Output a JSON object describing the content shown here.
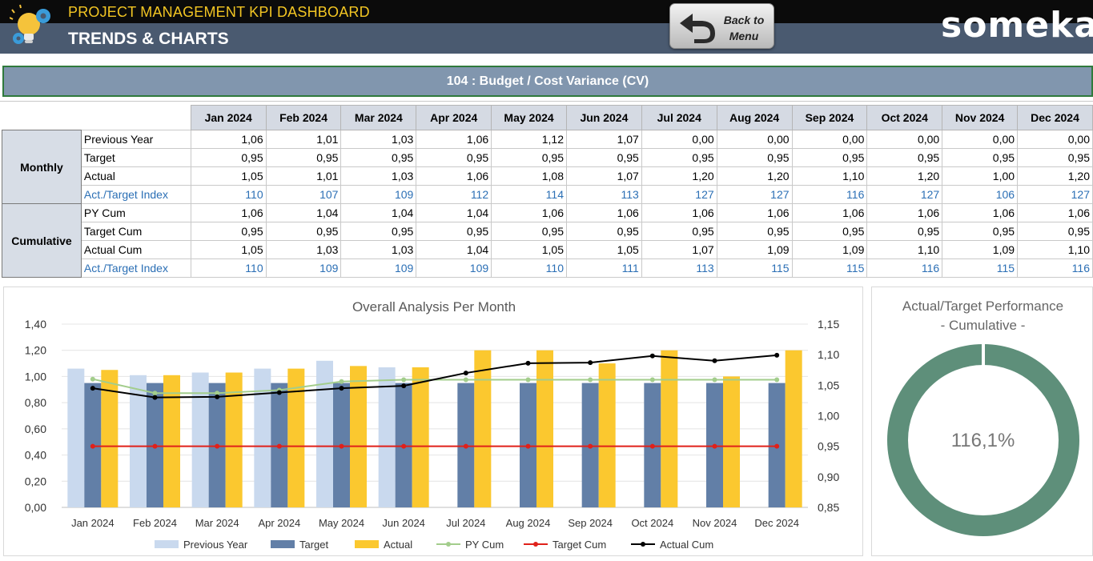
{
  "header": {
    "app_title": "PROJECT MANAGEMENT KPI DASHBOARD",
    "page_title": "TRENDS & CHARTS",
    "back_label": "Back to\nMenu",
    "brand": "someka",
    "icons": [
      "lightbulb-gears-icon",
      "back-arrow-icon"
    ]
  },
  "kpi": {
    "title": "104 : Budget / Cost Variance (CV)"
  },
  "table": {
    "months": [
      "Jan 2024",
      "Feb 2024",
      "Mar 2024",
      "Apr 2024",
      "May 2024",
      "Jun 2024",
      "Jul 2024",
      "Aug 2024",
      "Sep 2024",
      "Oct 2024",
      "Nov 2024",
      "Dec 2024"
    ],
    "groups": [
      {
        "name": "Monthly",
        "rows": [
          {
            "label": "Previous Year",
            "values": [
              "1,06",
              "1,01",
              "1,03",
              "1,06",
              "1,12",
              "1,07",
              "0,00",
              "0,00",
              "0,00",
              "0,00",
              "0,00",
              "0,00"
            ]
          },
          {
            "label": "Target",
            "values": [
              "0,95",
              "0,95",
              "0,95",
              "0,95",
              "0,95",
              "0,95",
              "0,95",
              "0,95",
              "0,95",
              "0,95",
              "0,95",
              "0,95"
            ]
          },
          {
            "label": "Actual",
            "values": [
              "1,05",
              "1,01",
              "1,03",
              "1,06",
              "1,08",
              "1,07",
              "1,20",
              "1,20",
              "1,10",
              "1,20",
              "1,00",
              "1,20"
            ]
          },
          {
            "label": "Act./Target Index",
            "values": [
              "110",
              "107",
              "109",
              "112",
              "114",
              "113",
              "127",
              "127",
              "116",
              "127",
              "106",
              "127"
            ]
          }
        ]
      },
      {
        "name": "Cumulative",
        "rows": [
          {
            "label": "PY Cum",
            "values": [
              "1,06",
              "1,04",
              "1,04",
              "1,04",
              "1,06",
              "1,06",
              "1,06",
              "1,06",
              "1,06",
              "1,06",
              "1,06",
              "1,06"
            ]
          },
          {
            "label": "Target Cum",
            "values": [
              "0,95",
              "0,95",
              "0,95",
              "0,95",
              "0,95",
              "0,95",
              "0,95",
              "0,95",
              "0,95",
              "0,95",
              "0,95",
              "0,95"
            ]
          },
          {
            "label": "Actual Cum",
            "values": [
              "1,05",
              "1,03",
              "1,03",
              "1,04",
              "1,05",
              "1,05",
              "1,07",
              "1,09",
              "1,09",
              "1,10",
              "1,09",
              "1,10"
            ]
          },
          {
            "label": "Act./Target Index",
            "values": [
              "110",
              "109",
              "109",
              "109",
              "110",
              "111",
              "113",
              "115",
              "115",
              "116",
              "115",
              "116"
            ]
          }
        ]
      }
    ]
  },
  "chart_data": [
    {
      "type": "bar",
      "title": "Overall Analysis Per Month",
      "categories": [
        "Jan 2024",
        "Feb 2024",
        "Mar 2024",
        "Apr 2024",
        "May 2024",
        "Jun 2024",
        "Jul 2024",
        "Aug 2024",
        "Sep 2024",
        "Oct 2024",
        "Nov 2024",
        "Dec 2024"
      ],
      "ylim": [
        0,
        1.4
      ],
      "y_ticks": [
        "0,00",
        "0,20",
        "0,40",
        "0,60",
        "0,80",
        "1,00",
        "1,20",
        "1,40"
      ],
      "y2lim": [
        0.85,
        1.15
      ],
      "y2_ticks": [
        "0,85",
        "0,90",
        "0,95",
        "1,00",
        "1,05",
        "1,10",
        "1,15"
      ],
      "legend_position": "bottom",
      "series": [
        {
          "name": "Previous Year",
          "type": "bar",
          "axis": "left",
          "color": "#c9d9ee",
          "values": [
            1.06,
            1.01,
            1.03,
            1.06,
            1.12,
            1.07,
            0,
            0,
            0,
            0,
            0,
            0
          ]
        },
        {
          "name": "Target",
          "type": "bar",
          "axis": "left",
          "color": "#627fa7",
          "values": [
            0.95,
            0.95,
            0.95,
            0.95,
            0.95,
            0.95,
            0.95,
            0.95,
            0.95,
            0.95,
            0.95,
            0.95
          ]
        },
        {
          "name": "Actual",
          "type": "bar",
          "axis": "left",
          "color": "#fbc82f",
          "values": [
            1.05,
            1.01,
            1.03,
            1.06,
            1.08,
            1.07,
            1.2,
            1.2,
            1.1,
            1.2,
            1.0,
            1.2
          ]
        },
        {
          "name": "PY Cum",
          "type": "line",
          "axis": "right",
          "color": "#a3cd8c",
          "values": [
            1.06,
            1.037,
            1.037,
            1.042,
            1.056,
            1.059,
            1.059,
            1.059,
            1.059,
            1.059,
            1.059,
            1.059
          ]
        },
        {
          "name": "Target Cum",
          "type": "line",
          "axis": "right",
          "color": "#e0211a",
          "values": [
            0.95,
            0.95,
            0.95,
            0.95,
            0.95,
            0.95,
            0.95,
            0.95,
            0.95,
            0.95,
            0.95,
            0.95
          ]
        },
        {
          "name": "Actual Cum",
          "type": "line",
          "axis": "right",
          "color": "#000000",
          "values": [
            1.045,
            1.03,
            1.031,
            1.038,
            1.045,
            1.049,
            1.07,
            1.086,
            1.087,
            1.098,
            1.09,
            1.099
          ]
        }
      ]
    },
    {
      "type": "pie",
      "title": "Actual/Target Performance",
      "subtitle": "- Cumulative -",
      "value_label": "116,1%",
      "value": 116.1,
      "color": "#5e8f7a"
    }
  ]
}
